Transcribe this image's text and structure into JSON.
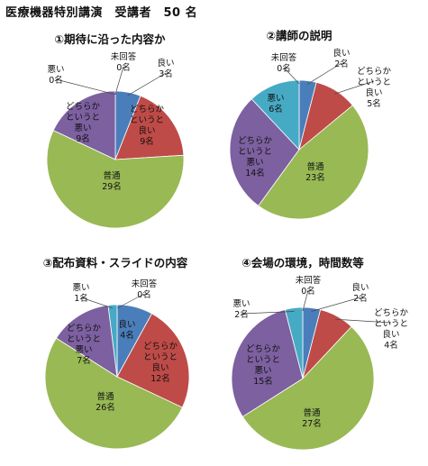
{
  "page_title": "医療機器特別講演　受講者　50 名",
  "colors": {
    "yoi": "#4a7ebb",
    "dochira_yoi": "#be4b48",
    "futsu": "#98b954",
    "dochira_warui": "#7d60a0",
    "warui": "#46aac5",
    "mikaito": "#4a7ebb"
  },
  "chart_data": [
    {
      "type": "pie",
      "title": "①期待に沿った内容か",
      "slices": [
        {
          "label": "良い",
          "count": "3名",
          "value": 3,
          "key": "yoi"
        },
        {
          "label": "どちらかというと良い",
          "count": "9名",
          "value": 9,
          "key": "dochira_yoi"
        },
        {
          "label": "普通",
          "count": "29名",
          "value": 29,
          "key": "futsu"
        },
        {
          "label": "どちらかというと悪い",
          "count": "9名",
          "value": 9,
          "key": "dochira_warui"
        },
        {
          "label": "悪い",
          "count": "0名",
          "value": 0,
          "key": "warui"
        },
        {
          "label": "未回答",
          "count": "0名",
          "value": 0,
          "key": "mikaito"
        }
      ]
    },
    {
      "type": "pie",
      "title": "②講師の説明",
      "slices": [
        {
          "label": "良い",
          "count": "2名",
          "value": 2,
          "key": "yoi"
        },
        {
          "label": "どちらかというと良い",
          "count": "5名",
          "value": 5,
          "key": "dochira_yoi"
        },
        {
          "label": "普通",
          "count": "23名",
          "value": 23,
          "key": "futsu"
        },
        {
          "label": "どちらかというと悪い",
          "count": "14名",
          "value": 14,
          "key": "dochira_warui"
        },
        {
          "label": "悪い",
          "count": "6名",
          "value": 6,
          "key": "warui"
        },
        {
          "label": "未回答",
          "count": "0名",
          "value": 0,
          "key": "mikaito"
        }
      ]
    },
    {
      "type": "pie",
      "title": "③配布資料・スライドの内容",
      "slices": [
        {
          "label": "良い",
          "count": "4名",
          "value": 4,
          "key": "yoi"
        },
        {
          "label": "どちらかというと良い",
          "count": "12名",
          "value": 12,
          "key": "dochira_yoi"
        },
        {
          "label": "普通",
          "count": "26名",
          "value": 26,
          "key": "futsu"
        },
        {
          "label": "どちらかというと悪い",
          "count": "7名",
          "value": 7,
          "key": "dochira_warui"
        },
        {
          "label": "悪い",
          "count": "1名",
          "value": 1,
          "key": "warui"
        },
        {
          "label": "未回答",
          "count": "0名",
          "value": 0,
          "key": "mikaito"
        }
      ]
    },
    {
      "type": "pie",
      "title": "④会場の環境，時間数等",
      "slices": [
        {
          "label": "良い",
          "count": "2名",
          "value": 2,
          "key": "yoi"
        },
        {
          "label": "どちらかというと良い",
          "count": "4名",
          "value": 4,
          "key": "dochira_yoi"
        },
        {
          "label": "普通",
          "count": "27名",
          "value": 27,
          "key": "futsu"
        },
        {
          "label": "どちらかというと悪い",
          "count": "15名",
          "value": 15,
          "key": "dochira_warui"
        },
        {
          "label": "悪い",
          "count": "2名",
          "value": 2,
          "key": "warui"
        },
        {
          "label": "未回答",
          "count": "0名",
          "value": 0,
          "key": "mikaito"
        }
      ]
    }
  ]
}
